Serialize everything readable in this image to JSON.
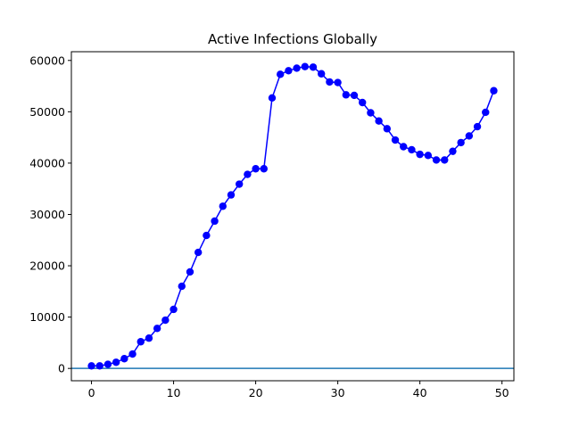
{
  "chart_data": {
    "type": "line",
    "title": "Active Infections Globally",
    "xlabel": "",
    "ylabel": "",
    "xlim": [
      -2.45,
      51.45
    ],
    "ylim": [
      -2400,
      61700
    ],
    "x_ticks": [
      0,
      10,
      20,
      30,
      40,
      50
    ],
    "y_ticks": [
      0,
      10000,
      20000,
      30000,
      40000,
      50000,
      60000
    ],
    "grid": false,
    "colors": {
      "series": "#0000ff",
      "baseline": "#1f77b4"
    },
    "series": [
      {
        "marker": "circle",
        "x": [
          0,
          1,
          2,
          3,
          4,
          5,
          6,
          7,
          8,
          9,
          10,
          11,
          12,
          13,
          14,
          15,
          16,
          17,
          18,
          19,
          20,
          21,
          22,
          23,
          24,
          25,
          26,
          27,
          28,
          29,
          30,
          31,
          32,
          33,
          34,
          35,
          36,
          37,
          38,
          39,
          40,
          41,
          42,
          43,
          44,
          45,
          46,
          47,
          48,
          49
        ],
        "values": [
          500,
          500,
          800,
          1200,
          1900,
          2800,
          5200,
          5900,
          7800,
          9400,
          11500,
          16000,
          18800,
          22600,
          25900,
          28700,
          31600,
          33800,
          35900,
          37800,
          38900,
          38900,
          52700,
          57300,
          58000,
          58500,
          58800,
          58700,
          57400,
          55800,
          55700,
          53300,
          53200,
          51800,
          49800,
          48200,
          46700,
          44500,
          43200,
          42600,
          41700,
          41500,
          40600,
          40600,
          42300,
          44000,
          45300,
          47100,
          49900,
          54100
        ]
      }
    ],
    "baseline": {
      "y": 0
    }
  }
}
